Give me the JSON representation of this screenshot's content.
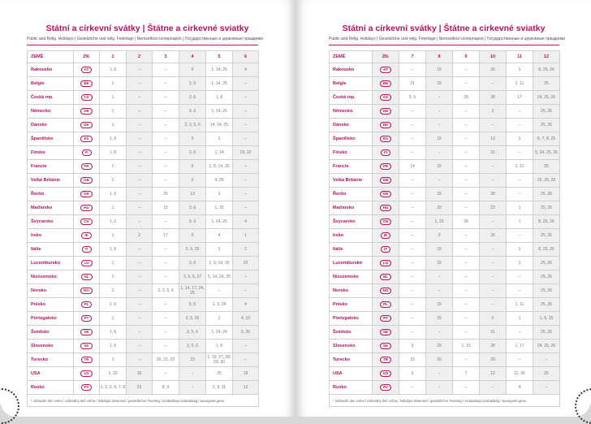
{
  "title": "Státní a církevní svátky | Štátne a cirkevné sviatky",
  "subtitle": "Public and Relig. Holidays | Gesetzliche und relig. Feiertage | Nemzetközi ünnepnapok | Государственные и церковные праздники",
  "columns": {
    "country": "ZEMĚ",
    "code": "ZN."
  },
  "left_months": [
    "1",
    "2",
    "3",
    "4",
    "5",
    "6"
  ],
  "right_months": [
    "7",
    "8",
    "9",
    "10",
    "11",
    "12"
  ],
  "footnote": "* náhradní den volna / náhradný deň voľna / holidays observed / gesetzlicher Feiertag / szabadnapi szabadság / выходной день",
  "accent_color": "#b3135f",
  "countries": [
    {
      "name": "Rakousko",
      "code": "AT",
      "left": [
        "1, 6",
        "–",
        "–",
        "5",
        "1, 14, 25",
        "4"
      ],
      "right": [
        "–",
        "15",
        "–",
        "26",
        "1",
        "8, 25, 26"
      ]
    },
    {
      "name": "Belgie",
      "code": "BE",
      "left": [
        "1",
        "–",
        "–",
        "3, 6",
        "1, 14, 25",
        "–"
      ],
      "right": [
        "21",
        "15",
        "–",
        "–",
        "1, 11",
        "25"
      ]
    },
    {
      "name": "Česká rep.",
      "code": "CZ",
      "left": [
        "1",
        "–",
        "–",
        "3, 6",
        "1, 8",
        "–"
      ],
      "right": [
        "5, 6",
        "–",
        "28",
        "28",
        "17",
        "24, 25, 26"
      ]
    },
    {
      "name": "Německo",
      "code": "DE",
      "left": [
        "1",
        "–",
        "–",
        "3, 6",
        "1, 14, 25",
        "–"
      ],
      "right": [
        "–",
        "–",
        "–",
        "3",
        "–",
        "25, 26"
      ]
    },
    {
      "name": "Dánsko",
      "code": "DK",
      "left": [
        "1",
        "–",
        "–",
        "2, 3, 5, 6",
        "14, 24, 25",
        "–"
      ],
      "right": [
        "–",
        "–",
        "–",
        "–",
        "–",
        "25, 26"
      ]
    },
    {
      "name": "Španělsko",
      "code": "ES",
      "left": [
        "1, 6",
        "–",
        "–",
        "3",
        "1",
        "–"
      ],
      "right": [
        "–",
        "15",
        "–",
        "12",
        "1",
        "6, 7, 8, 25"
      ]
    },
    {
      "name": "Finsko",
      "code": "FI",
      "left": [
        "1, 6",
        "–",
        "–",
        "3, 6",
        "1, 14",
        "19, 20"
      ],
      "right": [
        "–",
        "–",
        "–",
        "31",
        "–",
        "6, 24, 25, 26"
      ]
    },
    {
      "name": "Francie",
      "code": "FR",
      "left": [
        "1",
        "–",
        "–",
        "6",
        "1, 8, 14, 25",
        "–"
      ],
      "right": [
        "14",
        "15",
        "–",
        "–",
        "1, 11",
        "25"
      ]
    },
    {
      "name": "Velká Británie",
      "code": "GB",
      "left": [
        "1",
        "–",
        "–",
        "3",
        "4, 25",
        "–"
      ],
      "right": [
        "–",
        "–",
        "–",
        "–",
        "–",
        "25, 26, 28"
      ]
    },
    {
      "name": "Řecko",
      "code": "GR",
      "left": [
        "1, 6",
        "–",
        "25",
        "13",
        "1",
        "–"
      ],
      "right": [
        "–",
        "15",
        "–",
        "28",
        "–",
        "25, 26"
      ]
    },
    {
      "name": "Maďarsko",
      "code": "HU",
      "left": [
        "1",
        "–",
        "15",
        "3, 6",
        "1, 25",
        "–"
      ],
      "right": [
        "–",
        "20",
        "–",
        "23",
        "1",
        "25, 26"
      ]
    },
    {
      "name": "Švýcarsko",
      "code": "CH",
      "left": [
        "1, 2",
        "–",
        "–",
        "3, 6",
        "1, 14, 25",
        "4"
      ],
      "right": [
        "–",
        "1, 15",
        "28",
        "–",
        "1",
        "8, 25, 26"
      ]
    },
    {
      "name": "Irsko",
      "code": "IE",
      "left": [
        "1",
        "2",
        "17",
        "6",
        "4",
        "1"
      ],
      "right": [
        "–",
        "3",
        "–",
        "26",
        "–",
        "25, 26"
      ]
    },
    {
      "name": "Itálie",
      "code": "IT",
      "left": [
        "1, 6",
        "–",
        "–",
        "5, 6, 25",
        "1",
        "2"
      ],
      "right": [
        "–",
        "15",
        "–",
        "–",
        "1",
        "8, 25, 26"
      ]
    },
    {
      "name": "Lucembursko",
      "code": "LU",
      "left": [
        "1",
        "–",
        "–",
        "3, 6",
        "1, 9, 14, 25",
        "23"
      ],
      "right": [
        "–",
        "15",
        "–",
        "–",
        "1",
        "25, 26"
      ]
    },
    {
      "name": "Nizozemsko",
      "code": "NL",
      "left": [
        "1",
        "–",
        "–",
        "3, 5, 6, 27",
        "5, 14, 24, 25",
        "–"
      ],
      "right": [
        "–",
        "–",
        "–",
        "–",
        "–",
        "25, 26"
      ]
    },
    {
      "name": "Norsko",
      "code": "NO",
      "left": [
        "1",
        "–",
        "2, 3, 5, 6",
        "1, 14, 17, 24, 25",
        "–",
        "–"
      ],
      "right": [
        "–",
        "–",
        "–",
        "–",
        "–",
        "25, 26"
      ]
    },
    {
      "name": "Polsko",
      "code": "PL",
      "left": [
        "1, 6",
        "–",
        "–",
        "5, 6",
        "1, 3, 24",
        "4"
      ],
      "right": [
        "–",
        "15",
        "–",
        "–",
        "1, 11",
        "25, 26"
      ]
    },
    {
      "name": "Portugalsko",
      "code": "PT",
      "left": [
        "1",
        "–",
        "–",
        "3, 5, 25",
        "1",
        "4, 10"
      ],
      "right": [
        "–",
        "15",
        "–",
        "5",
        "1",
        "1, 8, 25"
      ]
    },
    {
      "name": "Švédsko",
      "code": "SE",
      "left": [
        "1, 6",
        "–",
        "–",
        "3, 5, 6",
        "1, 14, 24",
        "6, 20"
      ],
      "right": [
        "–",
        "–",
        "–",
        "31",
        "–",
        "25, 26"
      ]
    },
    {
      "name": "Slovensko",
      "code": "SK",
      "left": [
        "1, 6",
        "–",
        "–",
        "3, 5, 6",
        "1, 8",
        "–"
      ],
      "right": [
        "5",
        "29",
        "1, 15",
        "28",
        "1, 17",
        "24, 25, 26"
      ]
    },
    {
      "name": "Turecko",
      "code": "TR",
      "left": [
        "1",
        "–",
        "20, 21, 22",
        "23",
        "1, 19, 27, 28, 29, 30",
        "–"
      ],
      "right": [
        "15",
        "30",
        "–",
        "29",
        "–",
        "–"
      ]
    },
    {
      "name": "USA",
      "code": "US",
      "left": [
        "1, 19",
        "16",
        "–",
        "–",
        "25",
        "19"
      ],
      "right": [
        "3",
        "–",
        "7",
        "12",
        "11, 26",
        "25"
      ]
    },
    {
      "name": "Rusko",
      "code": "РУ",
      "left": [
        "1, 2, 5, 6, 7, 8",
        "23",
        "8, 9",
        "–",
        "1, 9, 11",
        "12"
      ],
      "right": [
        "–",
        "–",
        "–",
        "–",
        "4",
        "–"
      ]
    }
  ]
}
